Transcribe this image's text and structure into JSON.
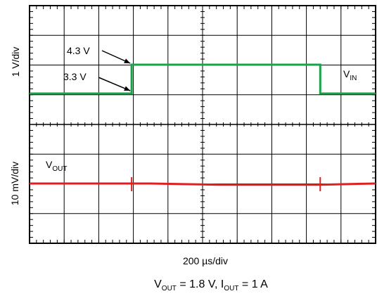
{
  "chart_data": {
    "type": "line",
    "grid": true,
    "divisions": {
      "x": 10,
      "y": 8
    },
    "time_scale": "200 µs/div",
    "xlim_div": [
      0,
      10
    ],
    "channels": [
      {
        "id": "vin",
        "name_main": "V",
        "name_sub": "IN",
        "scale": "1 V/div",
        "color": "#1aa34a",
        "unit": "V",
        "points": [
          [
            0,
            3.3
          ],
          [
            2.95,
            3.3
          ],
          [
            2.95,
            4.3
          ],
          [
            8.4,
            4.3
          ],
          [
            8.4,
            3.3
          ],
          [
            10,
            3.3
          ]
        ]
      },
      {
        "id": "vout",
        "name_main": "V",
        "name_sub": "OUT",
        "scale": "10 mV/div",
        "color": "#e02020",
        "unit": "V",
        "points": [
          [
            0,
            0.0
          ],
          [
            2.95,
            0.0
          ],
          [
            3.5,
            0.0
          ],
          [
            5.5,
            -0.0004
          ],
          [
            8.4,
            -0.0004
          ],
          [
            10,
            0.0
          ]
        ],
        "markers_div": [
          2.95,
          8.4
        ]
      }
    ],
    "annotations": [
      {
        "text": "4.3 V",
        "value": 4.3
      },
      {
        "text": "3.3 V",
        "value": 3.3
      }
    ]
  },
  "labels": {
    "vin_scale": "1 V/div",
    "vout_scale": "10 mV/div",
    "time_scale": "200 µs/div",
    "ann_high": "4.3 V",
    "ann_low": "3.3 V",
    "vin_main": "V",
    "vin_sub": "IN",
    "vout_main": "V",
    "vout_sub": "OUT"
  },
  "caption": {
    "vout_main": "V",
    "vout_sub": "OUT",
    "vout_value": " = 1.8 V, I",
    "iout_sub": "OUT",
    "iout_value": " = 1 A"
  }
}
